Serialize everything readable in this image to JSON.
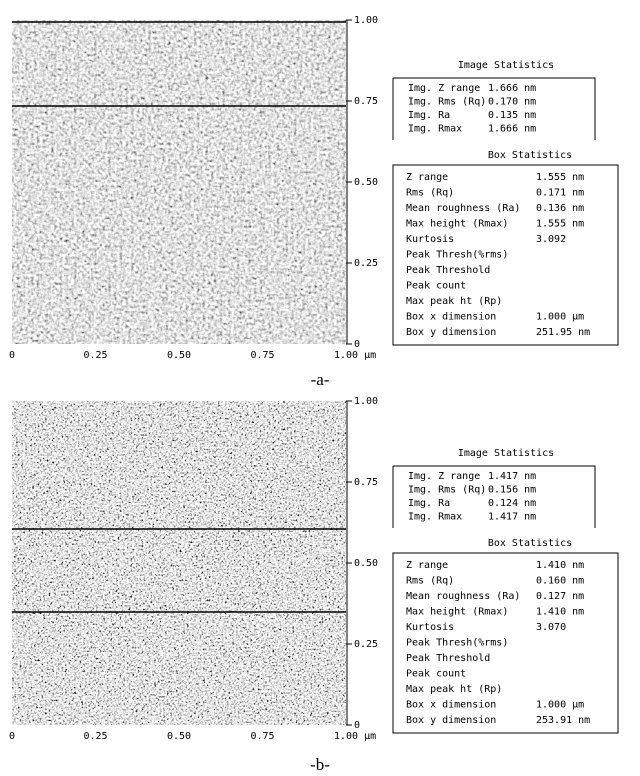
{
  "panels": [
    {
      "y_ticks": [
        "1.00",
        "0.75",
        "0.50",
        "0.25",
        "0"
      ],
      "x_ticks": [
        "0",
        "0.25",
        "0.50",
        "0.75",
        "1.00 µm"
      ],
      "image_stats": {
        "title": "Image Statistics",
        "rows": [
          [
            "Img. Z range",
            "1.666 nm"
          ],
          [
            "Img. Rms (Rq)",
            "0.170 nm"
          ],
          [
            "Img. Ra",
            "0.135 nm"
          ],
          [
            "Img. Rmax",
            "1.666 nm"
          ]
        ]
      },
      "box_stats": {
        "title": "Box Statistics",
        "rows": [
          [
            "Z range",
            "1.555 nm"
          ],
          [
            "Rms (Rq)",
            "0.171 nm"
          ],
          [
            "Mean roughness (Ra)",
            "0.136 nm"
          ],
          [
            "Max height (Rmax)",
            "1.555 nm"
          ],
          [
            "Kurtosis",
            "3.092"
          ],
          [
            "Peak Thresh(%rms)"
          ],
          [
            "Peak Threshold"
          ],
          [
            "Peak count"
          ],
          [
            "Max peak ht (Rp)"
          ],
          [
            "Box x dimension",
            "1.000 µm"
          ],
          [
            "Box y dimension",
            "251.95 nm"
          ]
        ]
      },
      "caption": "-a-"
    },
    {
      "y_ticks": [
        "1.00",
        "0.75",
        "0.50",
        "0.25",
        "0"
      ],
      "x_ticks": [
        "0",
        "0.25",
        "0.50",
        "0.75",
        "1.00 µm"
      ],
      "image_stats": {
        "title": "Image Statistics",
        "rows": [
          [
            "Img. Z range",
            "1.417 nm"
          ],
          [
            "Img. Rms (Rq)",
            "0.156 nm"
          ],
          [
            "Img. Ra",
            "0.124 nm"
          ],
          [
            "Img. Rmax",
            "1.417 nm"
          ]
        ]
      },
      "box_stats": {
        "title": "Box Statistics",
        "rows": [
          [
            "Z range",
            "1.410 nm"
          ],
          [
            "Rms (Rq)",
            "0.160 nm"
          ],
          [
            "Mean roughness (Ra)",
            "0.127 nm"
          ],
          [
            "Max height (Rmax)",
            "1.410 nm"
          ],
          [
            "Kurtosis",
            "3.070"
          ],
          [
            "Peak Thresh(%rms)"
          ],
          [
            "Peak Threshold"
          ],
          [
            "Peak count"
          ],
          [
            "Max peak ht (Rp)"
          ],
          [
            "Box x dimension",
            "1.000 µm"
          ],
          [
            "Box y dimension",
            "253.91 nm"
          ]
        ]
      },
      "caption": "-b-"
    }
  ]
}
